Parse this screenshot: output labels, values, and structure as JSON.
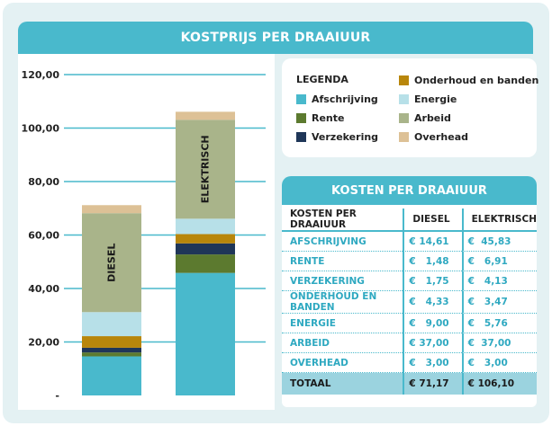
{
  "title": "KOSTPRIJS PER DRAAIUUR",
  "legend": {
    "title": "LEGENDA",
    "items": [
      {
        "label": "Afschrijving",
        "color": "#49b9cc"
      },
      {
        "label": "Rente",
        "color": "#5c7a2f"
      },
      {
        "label": "Verzekering",
        "color": "#1f3658"
      },
      {
        "label": "Onderhoud en banden",
        "color": "#b8860b"
      },
      {
        "label": "Energie",
        "color": "#b7e0e8"
      },
      {
        "label": "Arbeid",
        "color": "#a9b48a"
      },
      {
        "label": "Overhead",
        "color": "#ddc196"
      }
    ]
  },
  "table": {
    "title": "KOSTEN PER DRAAIUUR",
    "headers": [
      "KOSTEN PER DRAAIUUR",
      "DIESEL",
      "ELEKTRISCH"
    ],
    "rows": [
      [
        "AFSCHRIJVING",
        "€ 14,61",
        "€  45,83"
      ],
      [
        "RENTE",
        "€   1,48",
        "€   6,91"
      ],
      [
        "VERZEKERING",
        "€   1,75",
        "€   4,13"
      ],
      [
        "ONDERHOUD EN BANDEN",
        "€   4,33",
        "€   3,47"
      ],
      [
        "ENERGIE",
        "€   9,00",
        "€   5,76"
      ],
      [
        "ARBEID",
        "€ 37,00",
        "€  37,00"
      ],
      [
        "OVERHEAD",
        "€   3,00",
        "€   3,00"
      ]
    ],
    "total": [
      "TOTAAL",
      "€ 71,17",
      "€ 106,10"
    ]
  },
  "chart_data": {
    "type": "bar",
    "stacked": true,
    "categories": [
      "DIESEL",
      "ELEKTRISCH"
    ],
    "series": [
      {
        "name": "Afschrijving",
        "color": "#49b9cc",
        "values": [
          14.61,
          45.83
        ]
      },
      {
        "name": "Rente",
        "color": "#5c7a2f",
        "values": [
          1.48,
          6.91
        ]
      },
      {
        "name": "Verzekering",
        "color": "#1f3658",
        "values": [
          1.75,
          4.13
        ]
      },
      {
        "name": "Onderhoud en banden",
        "color": "#b8860b",
        "values": [
          4.33,
          3.47
        ]
      },
      {
        "name": "Energie",
        "color": "#b7e0e8",
        "values": [
          9.0,
          5.76
        ]
      },
      {
        "name": "Arbeid",
        "color": "#a9b48a",
        "values": [
          37.0,
          37.0
        ]
      },
      {
        "name": "Overhead",
        "color": "#ddc196",
        "values": [
          3.0,
          3.0
        ]
      }
    ],
    "yticks": [
      "-",
      "20,00",
      "40,00",
      "60,00",
      "80,00",
      "100,00",
      "120,00"
    ],
    "ylim": [
      0,
      120
    ],
    "grid": true,
    "legend_position": "top-right"
  }
}
